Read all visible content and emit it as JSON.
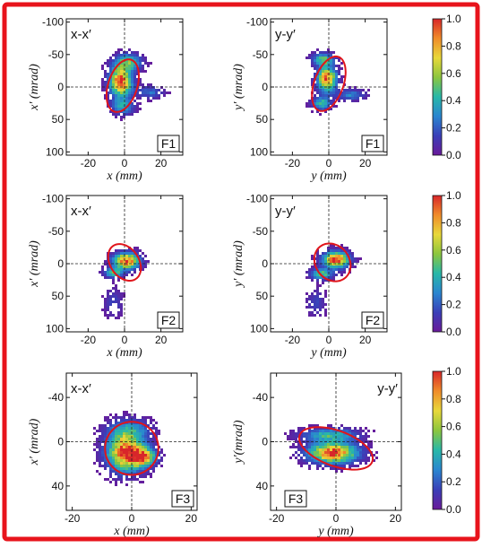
{
  "figure": {
    "frame_color": "#e8141c",
    "panels": [
      {
        "id": "F1-x",
        "tag": "x-x′",
        "badge": "F1",
        "ylabel": "x′ (mrad)",
        "xlabel": "x (mm)",
        "ytick_labels": [
          "100",
          "50",
          "0",
          "-50",
          "-100"
        ],
        "xtick_labels": [
          "-20",
          "0",
          "20"
        ]
      },
      {
        "id": "F1-y",
        "tag": "y-y′",
        "badge": "F1",
        "ylabel": "y′ (mrad)",
        "xlabel": "y (mm)",
        "ytick_labels": [
          "100",
          "50",
          "0",
          "-50",
          "-100"
        ],
        "xtick_labels": [
          "-20",
          "0",
          "20"
        ]
      },
      {
        "id": "F2-x",
        "tag": "x-x′",
        "badge": "F2",
        "ylabel": "x′ (mrad)",
        "xlabel": "x (mm)",
        "ytick_labels": [
          "100",
          "50",
          "0",
          "-50",
          "-100"
        ],
        "xtick_labels": [
          "-20",
          "0",
          "20"
        ]
      },
      {
        "id": "F2-y",
        "tag": "y-y′",
        "badge": "F2",
        "ylabel": "y′ (mrad)",
        "xlabel": "y (mm)",
        "ytick_labels": [
          "100",
          "50",
          "0",
          "-50",
          "-100"
        ],
        "xtick_labels": [
          "-20",
          "0",
          "20"
        ]
      },
      {
        "id": "F3-x",
        "tag": "x-x′",
        "badge": "F3",
        "ylabel": "x′ (mrad)",
        "xlabel": "x (mm)",
        "ytick_labels": [
          "40",
          "0",
          "-40"
        ],
        "xtick_labels": [
          "-20",
          "0",
          "20"
        ]
      },
      {
        "id": "F3-y",
        "tag": "y-y′",
        "badge": "F3",
        "ylabel": "y′(mrad)",
        "xlabel": "y (mm)",
        "ytick_labels": [
          "40",
          "0",
          "-40"
        ],
        "xtick_labels": [
          "-20",
          "0",
          "20"
        ]
      }
    ],
    "colorbar": {
      "tick_labels": [
        "1.0",
        "0.8",
        "0.6",
        "0.4",
        "0.2",
        "0.0"
      ],
      "colormap": [
        "#6a1a9a",
        "#3a3fb8",
        "#2a86d0",
        "#28b8a8",
        "#8cc63e",
        "#e8d83a",
        "#f08c2a",
        "#d8262a"
      ]
    }
  },
  "chart_data": [
    {
      "type": "heatmap",
      "title": "x-x′",
      "label": "F1",
      "xlabel": "x (mm)",
      "ylabel": "x′ (mrad)",
      "xlim": [
        -32,
        32
      ],
      "ylim": [
        -105,
        105
      ],
      "x_ticks": [
        -20,
        0,
        20
      ],
      "y_ticks": [
        -100,
        -50,
        0,
        50,
        100
      ],
      "crosshair": [
        0,
        0
      ],
      "colorbar_range": [
        0.0,
        1.0
      ],
      "ellipse": {
        "center": [
          -1,
          2
        ],
        "semi_axes": [
          8,
          42
        ],
        "rotation_deg": 18
      },
      "density_blobs": [
        {
          "center": [
            -2,
            8
          ],
          "spread": [
            6,
            22
          ],
          "peak": 1.0,
          "tilt_deg": 20
        },
        {
          "center": [
            2,
            38
          ],
          "spread": [
            7,
            12
          ],
          "peak": 0.55,
          "tilt_deg": -30
        },
        {
          "center": [
            14,
            -8
          ],
          "spread": [
            7,
            9
          ],
          "peak": 0.25,
          "tilt_deg": 10
        },
        {
          "center": [
            -1,
            -30
          ],
          "spread": [
            6,
            12
          ],
          "peak": 0.4,
          "tilt_deg": 0
        }
      ]
    },
    {
      "type": "heatmap",
      "title": "y-y′",
      "label": "F1",
      "xlabel": "y (mm)",
      "ylabel": "y′ (mrad)",
      "xlim": [
        -32,
        32
      ],
      "ylim": [
        -105,
        105
      ],
      "x_ticks": [
        -20,
        0,
        20
      ],
      "y_ticks": [
        -100,
        -50,
        0,
        50,
        100
      ],
      "crosshair": [
        0,
        0
      ],
      "colorbar_range": [
        0.0,
        1.0
      ],
      "ellipse": {
        "center": [
          0,
          5
        ],
        "semi_axes": [
          8,
          44
        ],
        "rotation_deg": 20
      },
      "density_blobs": [
        {
          "center": [
            -1,
            12
          ],
          "spread": [
            5,
            18
          ],
          "peak": 1.0,
          "tilt_deg": 25
        },
        {
          "center": [
            -3,
            42
          ],
          "spread": [
            6,
            10
          ],
          "peak": 0.5,
          "tilt_deg": 0
        },
        {
          "center": [
            12,
            -12
          ],
          "spread": [
            8,
            8
          ],
          "peak": 0.3,
          "tilt_deg": 10
        },
        {
          "center": [
            -4,
            -25
          ],
          "spread": [
            5,
            10
          ],
          "peak": 0.45,
          "tilt_deg": 0
        }
      ]
    },
    {
      "type": "heatmap",
      "title": "x-x′",
      "label": "F2",
      "xlabel": "x (mm)",
      "ylabel": "x′ (mrad)",
      "xlim": [
        -32,
        32
      ],
      "ylim": [
        -105,
        105
      ],
      "x_ticks": [
        -20,
        0,
        20
      ],
      "y_ticks": [
        -100,
        -50,
        0,
        50,
        100
      ],
      "crosshair": [
        0,
        0
      ],
      "colorbar_range": [
        0.0,
        1.0
      ],
      "ellipse": {
        "center": [
          0,
          2
        ],
        "semi_axes": [
          11,
          22
        ],
        "rotation_deg": 55
      },
      "density_blobs": [
        {
          "center": [
            1,
            4
          ],
          "spread": [
            7,
            12
          ],
          "peak": 1.0,
          "tilt_deg": 55
        },
        {
          "center": [
            -6,
            -14
          ],
          "spread": [
            5,
            7
          ],
          "peak": 0.5,
          "tilt_deg": 0
        },
        {
          "center": [
            -6,
            -60
          ],
          "spread": [
            5,
            22
          ],
          "peak": 0.15,
          "tilt_deg": 0
        }
      ]
    },
    {
      "type": "heatmap",
      "title": "y-y′",
      "label": "F2",
      "xlabel": "y (mm)",
      "ylabel": "y′ (mrad)",
      "xlim": [
        -32,
        32
      ],
      "ylim": [
        -105,
        105
      ],
      "x_ticks": [
        -20,
        0,
        20
      ],
      "y_ticks": [
        -100,
        -50,
        0,
        50,
        100
      ],
      "crosshair": [
        0,
        0
      ],
      "colorbar_range": [
        0.0,
        1.0
      ],
      "ellipse": {
        "center": [
          2,
          2
        ],
        "semi_axes": [
          11,
          26
        ],
        "rotation_deg": 52
      },
      "density_blobs": [
        {
          "center": [
            4,
            6
          ],
          "spread": [
            7,
            12
          ],
          "peak": 1.0,
          "tilt_deg": 52
        },
        {
          "center": [
            -4,
            -16
          ],
          "spread": [
            6,
            8
          ],
          "peak": 0.5,
          "tilt_deg": 0
        },
        {
          "center": [
            -7,
            -60
          ],
          "spread": [
            5,
            20
          ],
          "peak": 0.15,
          "tilt_deg": 0
        }
      ]
    },
    {
      "type": "heatmap",
      "title": "x-x′",
      "label": "F3",
      "xlabel": "x (mm)",
      "ylabel": "x′ (mrad)",
      "xlim": [
        -22,
        22
      ],
      "ylim": [
        -62,
        62
      ],
      "x_ticks": [
        -20,
        0,
        20
      ],
      "y_ticks": [
        -40,
        0,
        40
      ],
      "crosshair": [
        0,
        0
      ],
      "colorbar_range": [
        0.0,
        1.0
      ],
      "ellipse": {
        "center": [
          0,
          -6
        ],
        "semi_axes": [
          9,
          24
        ],
        "rotation_deg": -15
      },
      "density_blobs": [
        {
          "center": [
            -2,
            -10
          ],
          "spread": [
            6,
            16
          ],
          "peak": 1.0,
          "tilt_deg": -15
        },
        {
          "center": [
            4,
            -14
          ],
          "spread": [
            4,
            8
          ],
          "peak": 0.8,
          "tilt_deg": 0
        },
        {
          "center": [
            -1,
            10
          ],
          "spread": [
            7,
            10
          ],
          "peak": 0.35,
          "tilt_deg": 0
        }
      ]
    },
    {
      "type": "heatmap",
      "title": "y-y′",
      "label": "F3",
      "xlabel": "y (mm)",
      "ylabel": "y′(mrad)",
      "xlim": [
        -22,
        22
      ],
      "ylim": [
        -62,
        62
      ],
      "x_ticks": [
        -20,
        0,
        20
      ],
      "y_ticks": [
        -40,
        0,
        40
      ],
      "crosshair": [
        0,
        0
      ],
      "colorbar_range": [
        0.0,
        1.0
      ],
      "ellipse": {
        "center": [
          0,
          -6
        ],
        "semi_axes": [
          13,
          16
        ],
        "rotation_deg": 20
      },
      "density_blobs": [
        {
          "center": [
            -1,
            -10
          ],
          "spread": [
            8,
            9
          ],
          "peak": 1.0,
          "tilt_deg": 20
        },
        {
          "center": [
            -2,
            6
          ],
          "spread": [
            9,
            6
          ],
          "peak": 0.45,
          "tilt_deg": 0
        }
      ]
    }
  ]
}
